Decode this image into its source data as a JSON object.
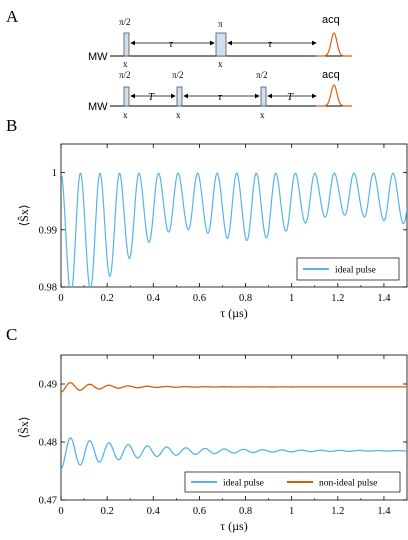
{
  "panels": {
    "a": "A",
    "b": "B",
    "c": "C"
  },
  "sequence": {
    "channel": "MW",
    "acq": "acq",
    "row1": {
      "pulses": [
        {
          "label": "π/2",
          "phase": "x"
        },
        {
          "label": "π",
          "phase": "x"
        }
      ],
      "delays": [
        "τ",
        "τ"
      ]
    },
    "row2": {
      "pulses": [
        {
          "label": "π/2",
          "phase": "x"
        },
        {
          "label": "π/2",
          "phase": "x"
        },
        {
          "label": "π/2",
          "phase": "x"
        }
      ],
      "delays": [
        "T",
        "τ",
        "T"
      ]
    },
    "colors": {
      "pulse_fill": "#cfe0f0",
      "acq": "#d95f0e"
    }
  },
  "chart_data": [
    {
      "type": "line",
      "panel": "B",
      "xlabel": "τ (µs)",
      "ylabel": "⟨Ŝx⟩",
      "xlim": [
        0,
        1.5
      ],
      "ylim": [
        0.98,
        1.005
      ],
      "xticks": [
        "0",
        "0.2",
        "0.4",
        "0.6",
        "0.8",
        "1",
        "1.2",
        "1.4"
      ],
      "yticks": [
        "0.98",
        "0.99",
        "1"
      ],
      "legend_position": "bottom-right",
      "series": [
        {
          "name": "ideal pulse",
          "color": "#56b4e9",
          "model": "1 - A(τ)·sin²(π f τ), oscillation frequency ≈ 12 MHz, depth decaying from 0.02 to ~0.01"
        }
      ]
    },
    {
      "type": "line",
      "panel": "C",
      "xlabel": "τ (µs)",
      "ylabel": "⟨Ŝx⟩",
      "xlim": [
        0,
        1.5
      ],
      "ylim": [
        0.47,
        0.495
      ],
      "xticks": [
        "0",
        "0.2",
        "0.4",
        "0.6",
        "0.8",
        "1",
        "1.2",
        "1.4"
      ],
      "yticks": [
        "0.47",
        "0.48",
        "0.49"
      ],
      "legend_position": "bottom-right",
      "series": [
        {
          "name": "ideal pulse",
          "color": "#56b4e9",
          "baseline": 0.4785,
          "initial_amplitude": 0.0028
        },
        {
          "name": "non-ideal pulse",
          "color": "#d55e00",
          "baseline": 0.4895,
          "initial_amplitude": 0.0009
        }
      ]
    }
  ]
}
